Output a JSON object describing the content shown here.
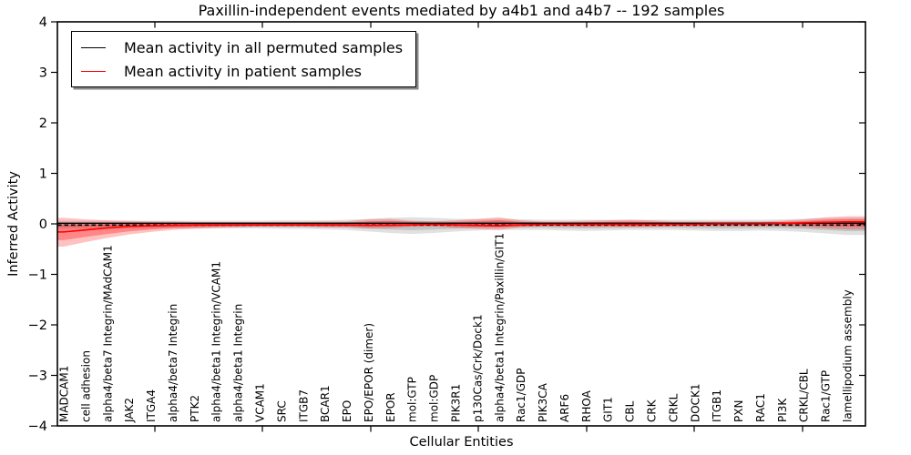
{
  "title": "Paxillin-independent events mediated by a4b1 and a4b7 -- 192 samples",
  "legend": {
    "entries": [
      {
        "label": "Mean activity in all permuted samples",
        "color": "#000000"
      },
      {
        "label": "Mean activity in patient samples",
        "color": "#ff0000"
      }
    ]
  },
  "chart_data": {
    "type": "line",
    "title": "Paxillin-independent events mediated by a4b1 and a4b7 -- 192 samples",
    "xlabel": "Cellular Entities",
    "ylabel": "Inferred Activity",
    "ylim": [
      -4,
      4
    ],
    "yticks": [
      4,
      3,
      2,
      1,
      0,
      -1,
      -2,
      -3,
      -4
    ],
    "grid": false,
    "legend_position": "upper left",
    "categories": [
      "MADCAM1",
      "cell adhesion",
      "alpha4/beta7 Integrin/MAdCAM1",
      "JAK2",
      "ITGA4",
      "alpha4/beta7 Integrin",
      "PTK2",
      "alpha4/beta1 Integrin/VCAM1",
      "alpha4/beta1 Integrin",
      "VCAM1",
      "SRC",
      "ITGB7",
      "BCAR1",
      "EPO",
      "EPO/EPOR (dimer)",
      "EPOR",
      "mol:GTP",
      "mol:GDP",
      "PIK3R1",
      "p130Cas/Crk/Dock1",
      "alpha4/beta1 Integrin/Paxillin/GIT1",
      "Rac1/GDP",
      "PIK3CA",
      "ARF6",
      "RHOA",
      "GIT1",
      "CBL",
      "CRK",
      "CRKL",
      "DOCK1",
      "ITGB1",
      "PXN",
      "RAC1",
      "PI3K",
      "CRKL/CBL",
      "Rac1/GTP",
      "lamellipodium assembly"
    ],
    "series": [
      {
        "name": "Mean activity in all permuted samples",
        "color": "#000000",
        "values": [
          0,
          0,
          0,
          0,
          0,
          0,
          0,
          0,
          0,
          0,
          0,
          0,
          0,
          0,
          0,
          0,
          0,
          0,
          0,
          0,
          0,
          0,
          0,
          0,
          0,
          0,
          0,
          0,
          0,
          0,
          0,
          0,
          0,
          0,
          0,
          0,
          0
        ]
      },
      {
        "name": "Mean activity in patient samples",
        "color": "#ff0000",
        "values": [
          -0.16,
          -0.12,
          -0.08,
          -0.05,
          -0.04,
          -0.03,
          -0.02,
          -0.02,
          -0.02,
          -0.02,
          -0.02,
          -0.02,
          -0.02,
          -0.02,
          -0.03,
          -0.03,
          -0.02,
          -0.01,
          -0.02,
          -0.03,
          -0.04,
          -0.02,
          -0.01,
          -0.01,
          -0.01,
          -0.01,
          -0.01,
          -0.01,
          -0.01,
          -0.01,
          0.0,
          0.0,
          0.0,
          0.01,
          0.02,
          0.03,
          0.04
        ]
      }
    ],
    "bands": [
      {
        "name": "permuted samples range",
        "color": "#808080",
        "top": [
          0.06,
          0.06,
          0.06,
          0.06,
          0.06,
          0.06,
          0.06,
          0.06,
          0.06,
          0.06,
          0.07,
          0.07,
          0.07,
          0.08,
          0.1,
          0.12,
          0.13,
          0.12,
          0.1,
          0.09,
          0.1,
          0.09,
          0.08,
          0.08,
          0.08,
          0.08,
          0.08,
          0.08,
          0.08,
          0.08,
          0.08,
          0.08,
          0.08,
          0.09,
          0.1,
          0.11,
          0.12
        ],
        "bottom": [
          -0.1,
          -0.1,
          -0.1,
          -0.09,
          -0.09,
          -0.09,
          -0.09,
          -0.09,
          -0.09,
          -0.09,
          -0.1,
          -0.1,
          -0.11,
          -0.12,
          -0.15,
          -0.18,
          -0.2,
          -0.18,
          -0.15,
          -0.13,
          -0.12,
          -0.12,
          -0.12,
          -0.13,
          -0.14,
          -0.13,
          -0.12,
          -0.12,
          -0.12,
          -0.13,
          -0.14,
          -0.14,
          -0.13,
          -0.14,
          -0.16,
          -0.19,
          -0.22
        ]
      },
      {
        "name": "patient samples range",
        "color": "#ff0000",
        "top": [
          0.12,
          0.09,
          0.07,
          0.06,
          0.05,
          0.05,
          0.04,
          0.04,
          0.04,
          0.04,
          0.04,
          0.04,
          0.05,
          0.05,
          0.09,
          0.1,
          0.06,
          0.05,
          0.07,
          0.1,
          0.13,
          0.07,
          0.05,
          0.05,
          0.06,
          0.07,
          0.08,
          0.07,
          0.05,
          0.05,
          0.05,
          0.05,
          0.05,
          0.06,
          0.09,
          0.13,
          0.15
        ],
        "bottom": [
          -0.45,
          -0.36,
          -0.28,
          -0.21,
          -0.16,
          -0.12,
          -0.1,
          -0.08,
          -0.07,
          -0.06,
          -0.06,
          -0.06,
          -0.07,
          -0.07,
          -0.09,
          -0.08,
          -0.06,
          -0.05,
          -0.08,
          -0.1,
          -0.12,
          -0.07,
          -0.05,
          -0.05,
          -0.06,
          -0.06,
          -0.07,
          -0.06,
          -0.05,
          -0.05,
          -0.05,
          -0.05,
          -0.05,
          -0.05,
          -0.07,
          -0.09,
          -0.11
        ]
      }
    ]
  }
}
